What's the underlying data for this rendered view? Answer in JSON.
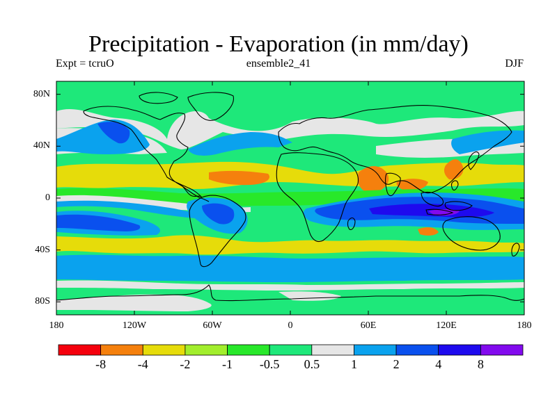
{
  "header": {
    "title": "Precipitation - Evaporation (in mm/day)",
    "left_label": "Expt = tcruO",
    "center_label": "ensemble2_41",
    "right_label": "DJF"
  },
  "axes": {
    "lat_labels": [
      "80N",
      "40N",
      "0",
      "40S",
      "80S"
    ],
    "lat_values": [
      80,
      40,
      0,
      -40,
      -80
    ],
    "lon_labels": [
      "180",
      "120W",
      "60W",
      "0",
      "60E",
      "120E",
      "180"
    ],
    "lon_values": [
      -180,
      -120,
      -60,
      0,
      60,
      120,
      180
    ],
    "lon_range": [
      -180,
      180
    ],
    "lat_range": [
      -90,
      90
    ]
  },
  "colorbar": {
    "colors": [
      "#f5000d",
      "#f5800d",
      "#e6dc0a",
      "#a2ee2c",
      "#28e82a",
      "#1ee87a",
      "#e6e6e6",
      "#0aa2ee",
      "#0a50ee",
      "#1e0aee",
      "#820aee"
    ],
    "labels": [
      "-8",
      "-4",
      "-2",
      "-1",
      "-0.5",
      "0.5",
      "1",
      "2",
      "4",
      "8"
    ]
  },
  "map_colors": {
    "background": "#1ee87a",
    "very_dry": "#f5800d",
    "dry": "#e6dc0a",
    "slightly_dry": "#a2ee2c",
    "near_zero": "#28e82a",
    "slightly_wet": "#e6e6e6",
    "wet": "#0aa2ee",
    "very_wet": "#0a50ee",
    "extreme_wet": "#1e0aee",
    "max_wet": "#820aee",
    "coastline": "#000000"
  }
}
